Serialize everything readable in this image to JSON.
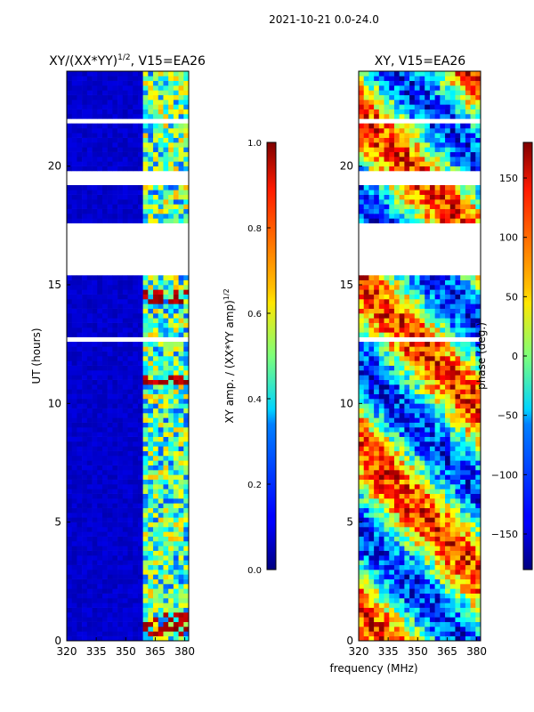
{
  "figure": {
    "suptitle": "2021-10-21 0.0-24.0",
    "xlabel": "frequency (MHz)"
  },
  "chart_data": [
    {
      "type": "heatmap",
      "title_main": "XY/(XX*YY)",
      "title_sup": "1/2",
      "title_tail": ", V15=EA26",
      "xlabel": "",
      "ylabel": "UT (hours)",
      "xlim": [
        320,
        382
      ],
      "ylim": [
        0,
        24
      ],
      "xticks": [
        320,
        335,
        350,
        365,
        380
      ],
      "yticks": [
        0,
        5,
        10,
        15,
        20
      ],
      "colormap": "jet",
      "colorbar": {
        "label_main": "XY amp. / (XX*YY amp)",
        "label_sup": "1/2",
        "range": [
          0.0,
          1.0
        ],
        "ticks": [
          "0.0",
          "0.2",
          "0.4",
          "0.6",
          "0.8",
          "1.0"
        ]
      },
      "description_values": {
        "low_freq_band_value": 0.05,
        "high_freq_band_value_range": [
          0.2,
          0.7
        ],
        "rfi_bursts_near_hour": [
          0.5,
          1.0,
          11.0,
          14.5
        ]
      },
      "blank_rows_hours": [
        [
          15.5,
          17.6
        ],
        [
          19.2,
          19.8
        ],
        [
          21.8,
          22.0
        ],
        [
          12.7,
          12.8
        ]
      ]
    },
    {
      "type": "heatmap",
      "title": "XY, V15=EA26",
      "xlabel": "",
      "ylabel": "",
      "xlim": [
        320,
        382
      ],
      "ylim": [
        0,
        24
      ],
      "xticks": [
        320,
        335,
        350,
        365,
        380
      ],
      "yticks": [
        0,
        5,
        10,
        15,
        20
      ],
      "colormap": "jet",
      "colorbar": {
        "label": "phase (deg.)",
        "range": [
          -180,
          180
        ],
        "ticks": [
          -150,
          -100,
          -50,
          0,
          50,
          100,
          150
        ]
      },
      "blank_rows_hours": [
        [
          15.5,
          17.6
        ],
        [
          19.2,
          19.8
        ],
        [
          21.8,
          22.0
        ],
        [
          12.7,
          12.8
        ]
      ]
    }
  ]
}
